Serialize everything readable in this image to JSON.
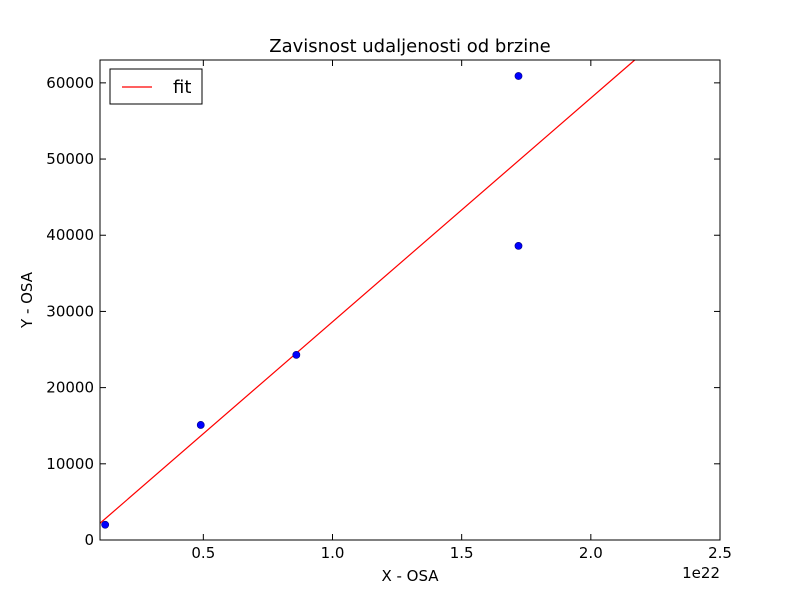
{
  "chart_data": {
    "type": "scatter",
    "title": "Zavisnost udaljenosti od brzine",
    "xlabel": "X - OSA",
    "ylabel": "Y - OSA",
    "x_offset_text": "1e22",
    "xlim": [
      0.1,
      2.5
    ],
    "ylim": [
      0,
      63000
    ],
    "x_ticks": [
      0.5,
      1.0,
      1.5,
      2.0,
      2.5
    ],
    "x_tick_labels": [
      "0.5",
      "1.0",
      "1.5",
      "2.0",
      "2.5"
    ],
    "y_ticks": [
      0,
      10000,
      20000,
      30000,
      40000,
      50000,
      60000
    ],
    "y_tick_labels": [
      "0",
      "10000",
      "20000",
      "30000",
      "40000",
      "50000",
      "60000"
    ],
    "grid": false,
    "legend_position": "top-left",
    "series": [
      {
        "type": "scatter",
        "color": "#0000ff",
        "marker": "circle",
        "x": [
          0.12,
          0.49,
          0.86,
          1.72,
          1.72
        ],
        "y": [
          2000,
          15100,
          24300,
          38600,
          60900
        ]
      },
      {
        "name": "fit",
        "type": "line",
        "color": "#ff0000",
        "x": [
          0.1,
          2.17
        ],
        "y": [
          2200,
          63000
        ]
      }
    ]
  }
}
